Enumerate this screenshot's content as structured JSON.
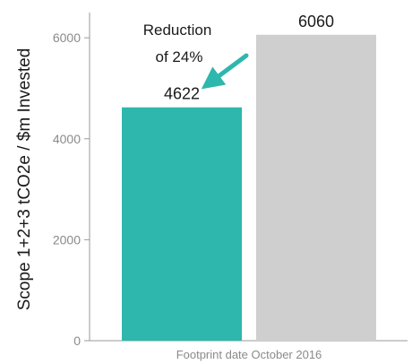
{
  "chart_data": {
    "type": "bar",
    "categories": [
      "",
      ""
    ],
    "values": [
      4622,
      6060
    ],
    "value_labels": [
      "4622",
      "6060"
    ],
    "colors": [
      "#2eb7ac",
      "#cfcfcf"
    ],
    "title": "",
    "xlabel": "Footprint date October 2016",
    "ylabel": "Scope 1+2+3 tCO2e / $m Invested",
    "ylim": [
      0,
      6500
    ],
    "yticks": [
      0,
      2000,
      4000,
      6000
    ],
    "ytick_labels": [
      "0",
      "2000",
      "4000",
      "6000"
    ],
    "grid": false,
    "annotation": {
      "line1": "Reduction",
      "line2": "of 24%",
      "arrow_color": "#2eb7ac"
    }
  }
}
